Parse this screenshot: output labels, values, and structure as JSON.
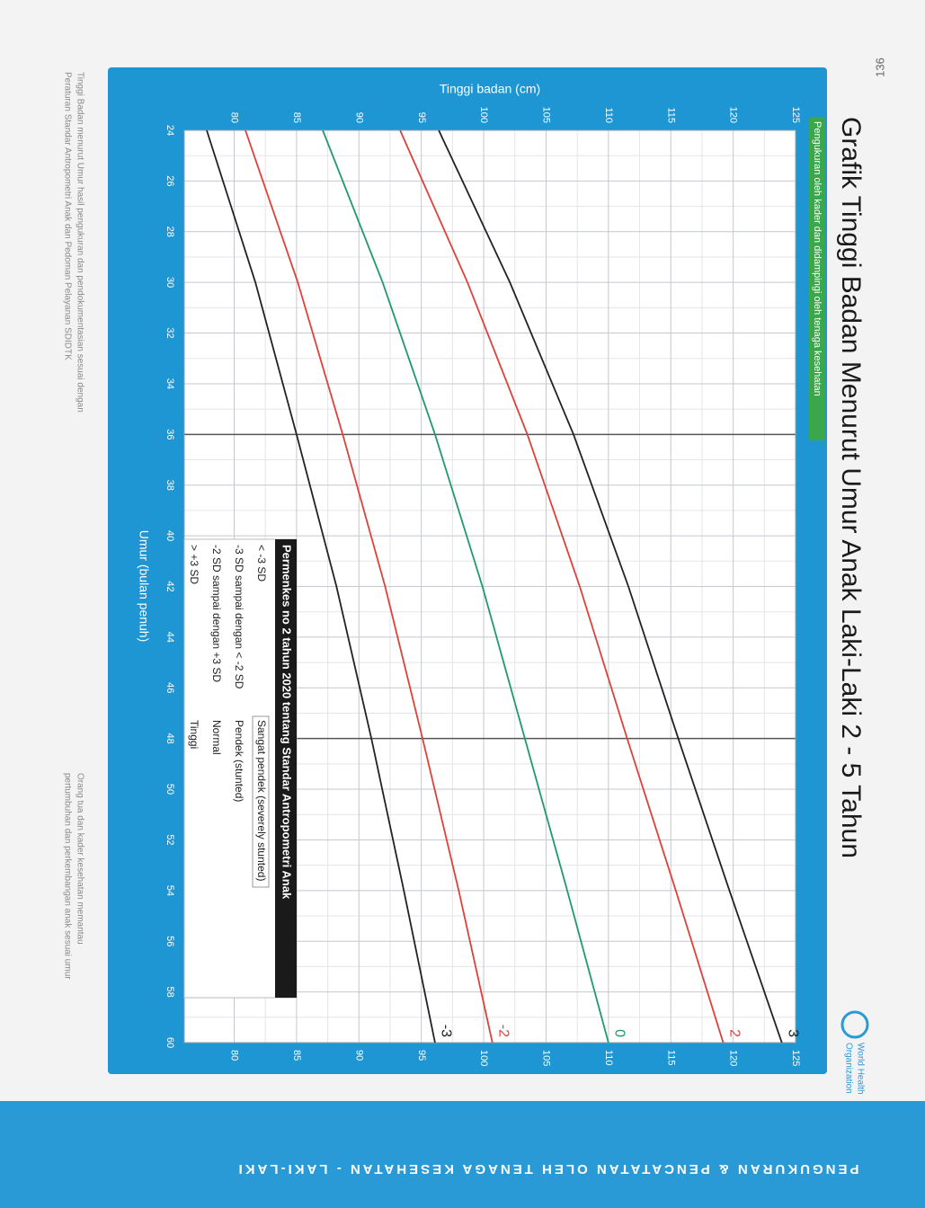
{
  "page_number": "136",
  "badge": "Pengukuran oleh kader dan didampingi oleh tenaga kesehatan",
  "organization": [
    "World Health",
    "Organization"
  ],
  "side_band": "PENGUKURAN & PENCATATAN OLEH TENAGA KESEHATAN - LAKI-LAKI",
  "notes": [
    "Tinggi Badan menurut Umur hasil pengukuran dan pendokumentasian sesuai dengan",
    "Peraturan Standar Antropometri Anak dan Pedoman Pelayanan SDIDTK",
    "Orang tua dan kader kesehatan memantau",
    "pertumbuhan dan perkembangan anak sesuai umur"
  ],
  "classification_table": {
    "title": "Permenkes no 2 tahun 2020 tentang Standar Antropometri Anak",
    "rows": [
      [
        "< -3 SD",
        "Sangat pendek (severely stunted)"
      ],
      [
        "-3 SD sampai dengan < -2 SD",
        "Pendek (stunted)"
      ],
      [
        "-2 SD sampai dengan +3 SD",
        "Normal"
      ],
      [
        "> +3 SD",
        "Tinggi"
      ]
    ]
  },
  "chart_data": {
    "type": "line",
    "title": "Grafik Tinggi Badan Menurut Umur Anak Laki-Laki 2 - 5 Tahun",
    "x_label": "Umur (bulan penuh)",
    "y_label": "Tinggi badan (cm)",
    "x": [
      24,
      30,
      36,
      42,
      48,
      54,
      60
    ],
    "series": [
      {
        "name": "3",
        "color": "#222222",
        "values": [
          96.4,
          102.1,
          107.2,
          111.6,
          115.6,
          119.7,
          123.9
        ]
      },
      {
        "name": "2",
        "color": "#e0403a",
        "values": [
          93.3,
          98.7,
          103.5,
          107.7,
          111.5,
          115.4,
          119.2
        ]
      },
      {
        "name": "0",
        "color": "#1f9a6a",
        "values": [
          87.1,
          91.9,
          96.1,
          99.9,
          103.3,
          106.7,
          110.0
        ]
      },
      {
        "name": "-2",
        "color": "#e0403a",
        "values": [
          80.9,
          85.1,
          88.7,
          92.1,
          95.1,
          98.0,
          100.7
        ]
      },
      {
        "name": "-3",
        "color": "#222222",
        "values": [
          77.8,
          81.7,
          85.0,
          88.2,
          91.0,
          93.6,
          96.1
        ]
      }
    ],
    "xlim": [
      24,
      60
    ],
    "xticks": [
      24,
      26,
      28,
      30,
      32,
      34,
      36,
      38,
      40,
      42,
      44,
      46,
      48,
      50,
      52,
      54,
      56,
      58,
      60
    ],
    "ylim": [
      76,
      125
    ],
    "yticks": [
      80,
      85,
      90,
      95,
      100,
      105,
      110,
      115,
      120,
      125
    ],
    "grid": true
  }
}
